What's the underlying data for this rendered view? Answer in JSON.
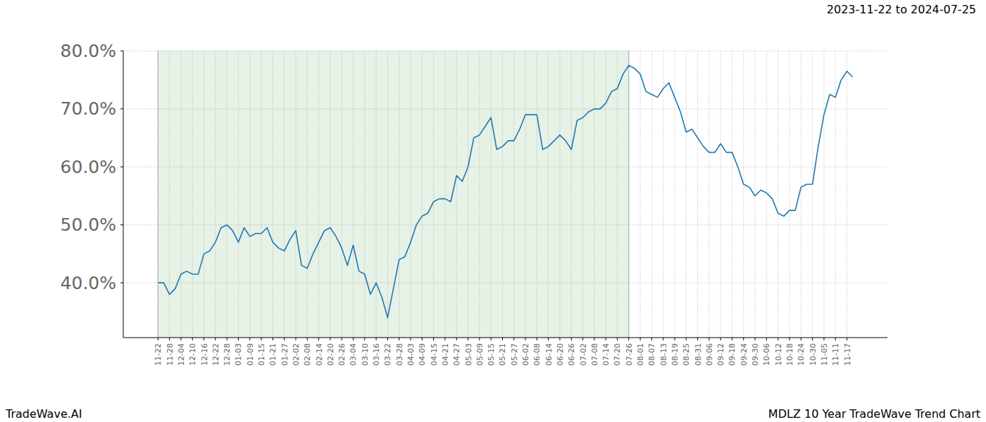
{
  "chart_data": {
    "type": "line",
    "title": "2023-11-22 to 2024-07-25",
    "footer_left": "TradeWave.AI",
    "footer_right": "MDLZ 10 Year TradeWave Trend Chart",
    "color": "#1f77b4",
    "grid": true,
    "shaded_range": [
      "11-22",
      "07-26"
    ],
    "categories": [
      "11-22",
      null,
      "11-28",
      null,
      "12-04",
      null,
      "12-10",
      null,
      "12-16",
      null,
      "12-22",
      null,
      "12-28",
      null,
      "01-03",
      null,
      "01-09",
      null,
      "01-15",
      null,
      "01-21",
      null,
      "01-27",
      null,
      "02-02",
      null,
      "02-08",
      null,
      "02-14",
      null,
      "02-20",
      null,
      "02-26",
      null,
      "03-04",
      null,
      "03-10",
      null,
      "03-16",
      null,
      "03-22",
      null,
      "03-28",
      null,
      "04-03",
      null,
      "04-09",
      null,
      "04-15",
      null,
      "04-21",
      null,
      "04-27",
      null,
      "05-03",
      null,
      "05-09",
      null,
      "05-15",
      null,
      "05-21",
      null,
      "05-27",
      null,
      "06-02",
      null,
      "06-08",
      null,
      "06-14",
      null,
      "06-20",
      null,
      "06-26",
      null,
      "07-02",
      null,
      "07-08",
      null,
      "07-14",
      null,
      "07-20",
      null,
      "07-26",
      null,
      "08-01",
      null,
      "08-07",
      null,
      "08-13",
      null,
      "08-19",
      null,
      "08-25",
      null,
      "08-31",
      null,
      "09-06",
      null,
      "09-12",
      null,
      "09-18",
      null,
      "09-24",
      null,
      "09-30",
      null,
      "10-06",
      null,
      "10-12",
      null,
      "10-18",
      null,
      "10-24",
      null,
      "10-30",
      null,
      "11-05",
      null,
      "11-11",
      null,
      "11-17",
      null
    ],
    "values": [
      40,
      40,
      38,
      39,
      41.5,
      42,
      41.5,
      41.5,
      45,
      45.5,
      47,
      49.5,
      50,
      49,
      47,
      49.5,
      48,
      48.5,
      48.5,
      49.5,
      47,
      46,
      45.5,
      47.5,
      49,
      43,
      42.5,
      45,
      47,
      49,
      49.5,
      48,
      46,
      43,
      46.5,
      42,
      41.5,
      38,
      40,
      37.5,
      34,
      39,
      44,
      44.5,
      47,
      50,
      51.5,
      52,
      54,
      54.5,
      54.5,
      54,
      58.5,
      57.5,
      60,
      65,
      65.5,
      67,
      68.5,
      63,
      63.5,
      64.5,
      64.5,
      66.5,
      69,
      69,
      69,
      63,
      63.5,
      64.5,
      65.5,
      64.5,
      63,
      68,
      68.5,
      69.5,
      70,
      70,
      71,
      73,
      73.5,
      76,
      77.5,
      77,
      76,
      73,
      72.5,
      72,
      73.5,
      74.5,
      72,
      69.5,
      66,
      66.5,
      65,
      63.5,
      62.5,
      62.5,
      64,
      62.5,
      62.5,
      60,
      57,
      56.5,
      55,
      56,
      55.5,
      54.5,
      52,
      51.5,
      52.5,
      52.5,
      56.5,
      57,
      57,
      63.5,
      69,
      72.5,
      72,
      75,
      76.5,
      75.5
    ],
    "ylim": [
      30.55,
      80.05
    ],
    "yticks": [
      {
        "value": 40,
        "label": "40.0%"
      },
      {
        "value": 50,
        "label": "50.0%"
      },
      {
        "value": 60,
        "label": "60.0%"
      },
      {
        "value": 70,
        "label": "70.0%"
      },
      {
        "value": 80,
        "label": "80.0%"
      }
    ]
  }
}
